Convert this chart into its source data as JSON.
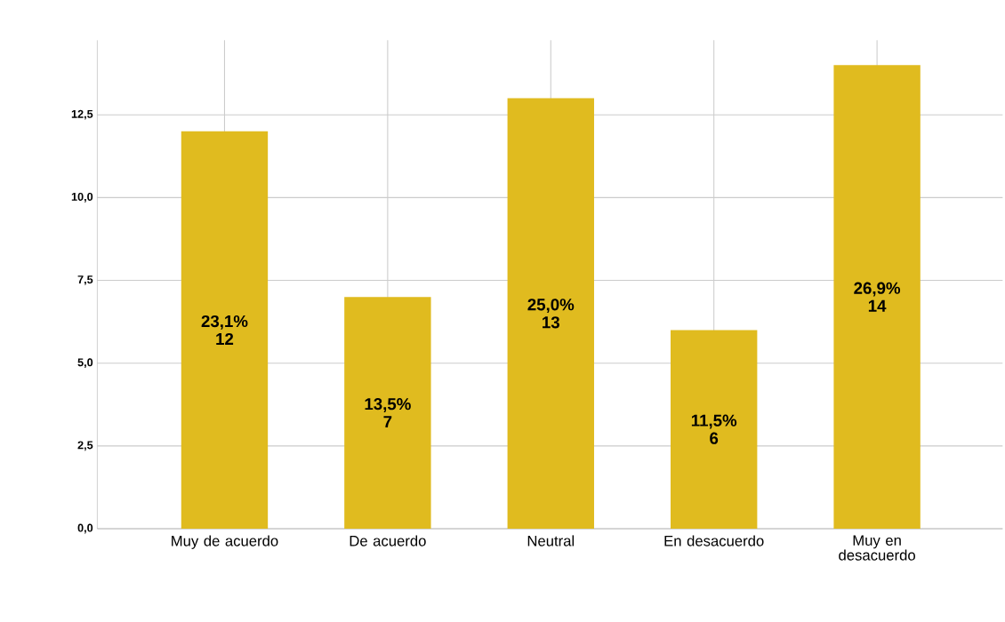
{
  "chart_data": {
    "type": "bar",
    "categories": [
      "Muy de acuerdo",
      "De acuerdo",
      "Neutral",
      "En desacuerdo",
      "Muy en desacuerdo"
    ],
    "values": [
      12,
      7,
      13,
      6,
      14
    ],
    "value_labels": [
      "23,1% 12",
      "13,5% 7",
      "25,0% 13",
      "11,5% 6",
      "26,9% 14"
    ],
    "color": "#e0bb1f",
    "ylim": [
      0,
      14.75
    ],
    "yticks": [
      {
        "value": 0,
        "label": "0,0"
      },
      {
        "value": 2.5,
        "label": "2,5"
      },
      {
        "value": 5,
        "label": "5,0"
      },
      {
        "value": 7.5,
        "label": "7,5"
      },
      {
        "value": 10,
        "label": "10,0"
      },
      {
        "value": 12.5,
        "label": "12,5"
      }
    ],
    "grid": true
  }
}
